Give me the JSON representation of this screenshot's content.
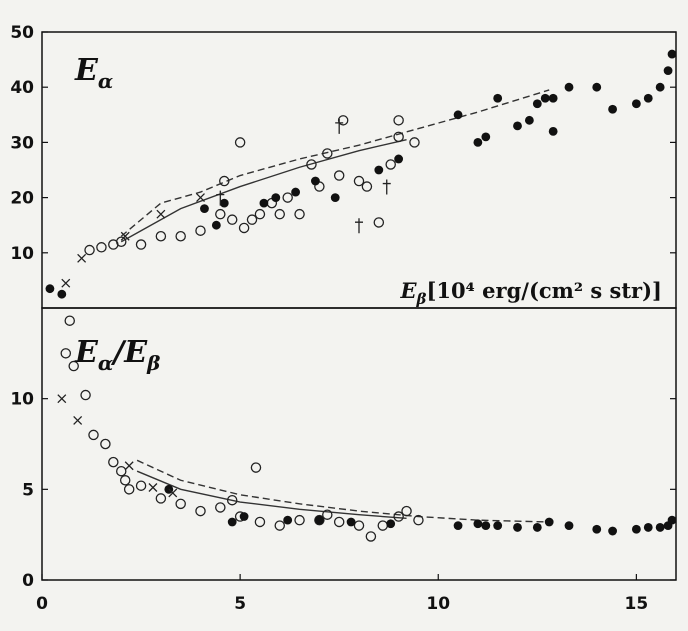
{
  "chart_data": [
    {
      "type": "scatter",
      "title": "Eα",
      "title_parts": {
        "main": "E",
        "sub": "α"
      },
      "xlabel": "Eβ[10⁴ erg/(cm² s str)]",
      "xlabel_parts": {
        "main": "E",
        "sub": "β",
        "rest": "[10⁴ erg/(cm² s str)]"
      },
      "xlim": [
        0,
        16
      ],
      "ylim": [
        0,
        50
      ],
      "yticks": [
        10,
        20,
        30,
        40,
        50
      ],
      "grid": false,
      "series": [
        {
          "marker": "open-circle",
          "points": [
            [
              1.2,
              10.5
            ],
            [
              1.5,
              11
            ],
            [
              1.8,
              11.5
            ],
            [
              2.0,
              12
            ],
            [
              2.5,
              11.5
            ],
            [
              3.0,
              13
            ],
            [
              3.5,
              13
            ],
            [
              4.0,
              14
            ],
            [
              4.5,
              17
            ],
            [
              4.8,
              16
            ],
            [
              5.1,
              14.5
            ],
            [
              5.5,
              17
            ],
            [
              6.0,
              17
            ],
            [
              6.5,
              17
            ],
            [
              7.0,
              22
            ],
            [
              7.5,
              24
            ],
            [
              6.8,
              26
            ],
            [
              7.2,
              28
            ],
            [
              7.6,
              34
            ],
            [
              8.0,
              23
            ],
            [
              8.5,
              15.5
            ],
            [
              8.8,
              26
            ],
            [
              9.0,
              31
            ],
            [
              9.0,
              34
            ],
            [
              9.4,
              30
            ],
            [
              5.3,
              16
            ],
            [
              5.8,
              19
            ],
            [
              6.2,
              20
            ],
            [
              5.0,
              30
            ],
            [
              4.6,
              23
            ],
            [
              8.2,
              22
            ]
          ]
        },
        {
          "marker": "filled-circle",
          "points": [
            [
              0.2,
              3.5
            ],
            [
              0.5,
              2.5
            ],
            [
              4.1,
              18
            ],
            [
              4.4,
              15
            ],
            [
              4.6,
              19
            ],
            [
              5.6,
              19
            ],
            [
              5.9,
              20
            ],
            [
              6.4,
              21
            ],
            [
              6.9,
              23
            ],
            [
              7.4,
              20
            ],
            [
              8.5,
              25
            ],
            [
              9.0,
              27
            ],
            [
              10.5,
              35
            ],
            [
              11.0,
              30
            ],
            [
              11.2,
              31
            ],
            [
              11.5,
              38
            ],
            [
              12.0,
              33
            ],
            [
              12.3,
              34
            ],
            [
              12.5,
              37
            ],
            [
              12.7,
              38
            ],
            [
              12.9,
              38
            ],
            [
              12.9,
              32
            ],
            [
              13.3,
              40
            ],
            [
              14.0,
              40
            ],
            [
              14.4,
              36
            ],
            [
              15.0,
              37
            ],
            [
              15.3,
              38
            ],
            [
              15.6,
              40
            ],
            [
              15.8,
              43
            ],
            [
              15.9,
              46
            ]
          ]
        },
        {
          "marker": "cross",
          "points": [
            [
              0.6,
              4.5
            ],
            [
              1.0,
              9
            ],
            [
              2.1,
              13
            ],
            [
              3.0,
              17
            ],
            [
              4.0,
              20
            ]
          ]
        },
        {
          "marker": "dagger",
          "points": [
            [
              4.5,
              20
            ],
            [
              7.5,
              33
            ],
            [
              8.7,
              22
            ],
            [
              8.0,
              15
            ]
          ]
        }
      ],
      "lines": [
        {
          "style": "solid",
          "x": [
            2.0,
            3.5,
            5.0,
            6.5,
            8.0,
            9.2
          ],
          "y": [
            12,
            18,
            22,
            25.5,
            28.5,
            30.5
          ]
        },
        {
          "style": "dashed",
          "x": [
            2.0,
            3.0,
            4.0,
            5.0,
            6.5,
            8.0,
            9.5,
            11.0,
            12.8
          ],
          "y": [
            13,
            19,
            21,
            24,
            27,
            29.5,
            32.5,
            35.5,
            39.5
          ]
        }
      ]
    },
    {
      "type": "scatter",
      "title": "Eα/Eβ",
      "title_parts": {
        "m1": "E",
        "s1": "α",
        "sep": "/",
        "m2": "E",
        "s2": "β"
      },
      "xlabel": "",
      "xlim": [
        0,
        16
      ],
      "ylim": [
        0,
        15
      ],
      "yticks": [
        0,
        5,
        10
      ],
      "xticks": [
        0,
        5,
        10,
        15
      ],
      "grid": false,
      "series": [
        {
          "marker": "open-circle",
          "points": [
            [
              0.7,
              14.3
            ],
            [
              0.6,
              12.5
            ],
            [
              0.8,
              11.8
            ],
            [
              1.1,
              10.2
            ],
            [
              1.3,
              8
            ],
            [
              1.6,
              7.5
            ],
            [
              1.8,
              6.5
            ],
            [
              2.0,
              6
            ],
            [
              2.1,
              5.5
            ],
            [
              2.2,
              5
            ],
            [
              2.5,
              5.2
            ],
            [
              3.0,
              4.5
            ],
            [
              3.5,
              4.2
            ],
            [
              4.0,
              3.8
            ],
            [
              4.5,
              4
            ],
            [
              4.8,
              4.4
            ],
            [
              5.0,
              3.5
            ],
            [
              5.5,
              3.2
            ],
            [
              6.0,
              3.0
            ],
            [
              6.5,
              3.3
            ],
            [
              7.0,
              3.3
            ],
            [
              7.5,
              3.2
            ],
            [
              8.0,
              3
            ],
            [
              8.3,
              2.4
            ],
            [
              8.6,
              3
            ],
            [
              9.0,
              3.5
            ],
            [
              9.2,
              3.8
            ],
            [
              9.5,
              3.3
            ],
            [
              7.2,
              3.6
            ],
            [
              5.4,
              6.2
            ]
          ]
        },
        {
          "marker": "filled-circle",
          "points": [
            [
              3.2,
              5
            ],
            [
              4.8,
              3.2
            ],
            [
              5.1,
              3.5
            ],
            [
              6.2,
              3.3
            ],
            [
              7.0,
              3.3
            ],
            [
              7.8,
              3.2
            ],
            [
              8.8,
              3.1
            ],
            [
              10.5,
              3.0
            ],
            [
              11.0,
              3.1
            ],
            [
              11.2,
              3.0
            ],
            [
              11.5,
              3.0
            ],
            [
              12.0,
              2.9
            ],
            [
              12.5,
              2.9
            ],
            [
              12.8,
              3.2
            ],
            [
              13.3,
              3.0
            ],
            [
              14.0,
              2.8
            ],
            [
              14.4,
              2.7
            ],
            [
              15.0,
              2.8
            ],
            [
              15.3,
              2.9
            ],
            [
              15.6,
              2.9
            ],
            [
              15.8,
              3.0
            ],
            [
              15.9,
              3.3
            ]
          ]
        },
        {
          "marker": "cross",
          "points": [
            [
              0.5,
              10
            ],
            [
              0.9,
              8.8
            ],
            [
              2.2,
              6.3
            ],
            [
              2.8,
              5.1
            ],
            [
              3.3,
              4.8
            ]
          ]
        }
      ],
      "lines": [
        {
          "style": "solid",
          "x": [
            2.4,
            3.5,
            5.0,
            6.5,
            8.0,
            9.2
          ],
          "y": [
            6.0,
            5.0,
            4.3,
            3.9,
            3.6,
            3.4
          ]
        },
        {
          "style": "dashed",
          "x": [
            2.4,
            3.5,
            5.0,
            6.5,
            8.0,
            9.5,
            11.0,
            12.8
          ],
          "y": [
            6.6,
            5.5,
            4.7,
            4.2,
            3.8,
            3.5,
            3.3,
            3.2
          ]
        }
      ]
    }
  ]
}
